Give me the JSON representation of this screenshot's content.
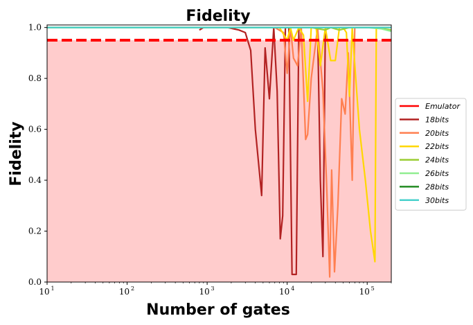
{
  "chart_data": {
    "type": "line",
    "title": "Fidelity",
    "xlabel": "Number of gates",
    "ylabel": "Fidelity",
    "xscale": "log",
    "xlim": [
      10,
      200000
    ],
    "ylim": [
      0.0,
      1.01
    ],
    "x_ticks": [
      10,
      100,
      1000,
      10000,
      100000
    ],
    "x_tick_labels": [
      "10",
      "2",
      "10",
      "3",
      "10",
      "4",
      "10",
      "5"
    ],
    "x_tick_base": "10",
    "x_tick_exponents": [
      "1",
      "2",
      "3",
      "4",
      "5"
    ],
    "y_ticks": [
      0.0,
      0.2,
      0.4,
      0.6,
      0.8,
      1.0
    ],
    "y_tick_labels": [
      "0.0",
      "0.2",
      "0.4",
      "0.6",
      "0.8",
      "1.0"
    ],
    "grid": false,
    "legend_position": "center-right",
    "shaded_region": {
      "y_from": 0.0,
      "y_to": 0.95,
      "color": "#ffcccc"
    },
    "threshold": {
      "name": "Emulator",
      "y": 0.95,
      "color": "#ff0000",
      "style": "dashed"
    },
    "series": [
      {
        "name": "18bits",
        "color": "#b22222",
        "x": [
          800,
          900,
          1200,
          1800,
          2500,
          3000,
          3500,
          4000,
          4800,
          5300,
          6000,
          6800,
          7500,
          8200,
          8800,
          9500,
          10500,
          11500,
          12500,
          13000,
          14000,
          16000,
          20000,
          24000,
          26000,
          28000,
          30000
        ],
        "y": [
          0.99,
          1.0,
          1.0,
          1.0,
          0.99,
          0.98,
          0.91,
          0.6,
          0.34,
          0.92,
          0.72,
          1.0,
          0.75,
          0.17,
          0.26,
          1.0,
          1.0,
          0.03,
          0.03,
          0.03,
          1.0,
          1.0,
          1.0,
          1.0,
          0.4,
          0.1,
          1.0
        ]
      },
      {
        "name": "20bits",
        "color": "#ff7f50",
        "x": [
          2000,
          4000,
          7000,
          9000,
          10000,
          11000,
          12000,
          13500,
          15000,
          17000,
          18000,
          20000,
          24000,
          28000,
          31000,
          34000,
          36000,
          39000,
          43000,
          48000,
          53000,
          58000,
          65000,
          70000,
          75000,
          85000,
          100000
        ],
        "y": [
          1.0,
          1.0,
          1.0,
          0.98,
          0.82,
          1.0,
          0.88,
          0.85,
          1.0,
          0.56,
          0.58,
          0.8,
          1.0,
          0.75,
          0.4,
          0.02,
          0.44,
          0.04,
          0.3,
          0.72,
          0.66,
          0.9,
          0.4,
          1.0,
          1.0,
          1.0,
          1.0
        ]
      },
      {
        "name": "22bits",
        "color": "#ffd700",
        "x": [
          8000,
          10000,
          11000,
          12000,
          14000,
          16000,
          18000,
          20000,
          23000,
          26000,
          30000,
          35000,
          40000,
          45000,
          50000,
          55000,
          60000,
          65000,
          72000,
          80000,
          95000,
          110000,
          125000,
          130000,
          150000,
          200000
        ],
        "y": [
          1.0,
          0.95,
          1.0,
          0.95,
          1.0,
          0.97,
          0.71,
          1.0,
          1.0,
          0.85,
          1.0,
          0.87,
          0.87,
          1.0,
          1.0,
          0.98,
          0.73,
          1.0,
          0.8,
          0.6,
          0.4,
          0.2,
          0.08,
          1.0,
          1.0,
          1.0
        ]
      },
      {
        "name": "24bits",
        "color": "#9acd32",
        "x": [
          10,
          1000,
          10000,
          20000,
          30000,
          35000,
          45000,
          60000,
          80000,
          120000,
          200000
        ],
        "y": [
          1.0,
          1.0,
          1.0,
          1.0,
          0.99,
          1.0,
          0.99,
          1.0,
          1.0,
          1.0,
          0.99
        ]
      },
      {
        "name": "26bits",
        "color": "#90ee90",
        "x": [
          10,
          1000,
          10000,
          50000,
          100000,
          150000,
          200000
        ],
        "y": [
          1.0,
          1.0,
          1.0,
          1.0,
          1.0,
          0.995,
          0.985
        ]
      },
      {
        "name": "28bits",
        "color": "#228b22",
        "x": [
          10,
          1000,
          10000,
          100000,
          200000
        ],
        "y": [
          1.0,
          1.0,
          1.0,
          1.0,
          1.0
        ]
      },
      {
        "name": "30bits",
        "color": "#48d1cc",
        "x": [
          10,
          1000,
          10000,
          100000,
          200000
        ],
        "y": [
          1.0,
          1.0,
          1.0,
          1.0,
          1.0
        ]
      }
    ]
  }
}
